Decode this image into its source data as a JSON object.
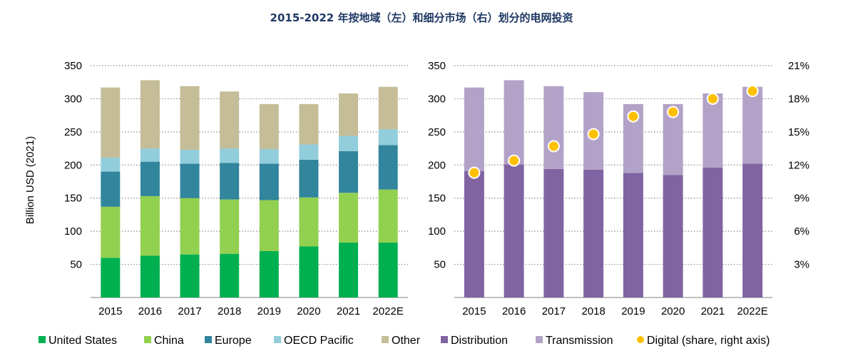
{
  "title": "2015-2022 年按地域（左）和细分市场（右）划分的电网投资",
  "chart_data": [
    {
      "type": "bar",
      "stacked": true,
      "categories": [
        "2015",
        "2016",
        "2017",
        "2018",
        "2019",
        "2020",
        "2021",
        "2022E"
      ],
      "ylabel": "Billion USD (2021)",
      "ylim": [
        0,
        350
      ],
      "yticks": [
        50,
        100,
        150,
        200,
        250,
        300,
        350
      ],
      "grid": true,
      "series": [
        {
          "name": "United States",
          "color": "#00b050",
          "values": [
            60,
            63,
            65,
            66,
            70,
            77,
            83,
            83
          ]
        },
        {
          "name": "China",
          "color": "#92d050",
          "values": [
            77,
            90,
            85,
            82,
            77,
            74,
            75,
            80
          ]
        },
        {
          "name": "Europe",
          "color": "#31859c",
          "values": [
            53,
            52,
            52,
            55,
            55,
            57,
            63,
            67
          ]
        },
        {
          "name": "OECD Pacific",
          "color": "#92cddc",
          "values": [
            21,
            20,
            21,
            22,
            22,
            23,
            23,
            24
          ]
        },
        {
          "name": "Other",
          "color": "#c4bd97",
          "values": [
            106,
            103,
            96,
            86,
            68,
            61,
            64,
            64
          ]
        }
      ]
    },
    {
      "type": "bar",
      "stacked": true,
      "categories": [
        "2015",
        "2016",
        "2017",
        "2018",
        "2019",
        "2020",
        "2021",
        "2022E"
      ],
      "ylim": [
        0,
        350
      ],
      "yticks": [
        50,
        100,
        150,
        200,
        250,
        300,
        350
      ],
      "y2lim": [
        0,
        21
      ],
      "y2ticks": [
        "3%",
        "6%",
        "9%",
        "12%",
        "15%",
        "18%",
        "21%"
      ],
      "grid": true,
      "series": [
        {
          "name": "Distribution",
          "color": "#8064a2",
          "values": [
            191,
            201,
            194,
            193,
            188,
            185,
            196,
            202
          ]
        },
        {
          "name": "Transmission",
          "color": "#b3a2c7",
          "values": [
            126,
            127,
            125,
            117,
            104,
            107,
            112,
            116
          ]
        },
        {
          "name": "Digital (share, right axis)",
          "color": "#ffc000",
          "axis": "right",
          "values": [
            11.3,
            12.4,
            13.7,
            14.8,
            16.4,
            16.8,
            18.0,
            18.7
          ]
        }
      ]
    }
  ]
}
